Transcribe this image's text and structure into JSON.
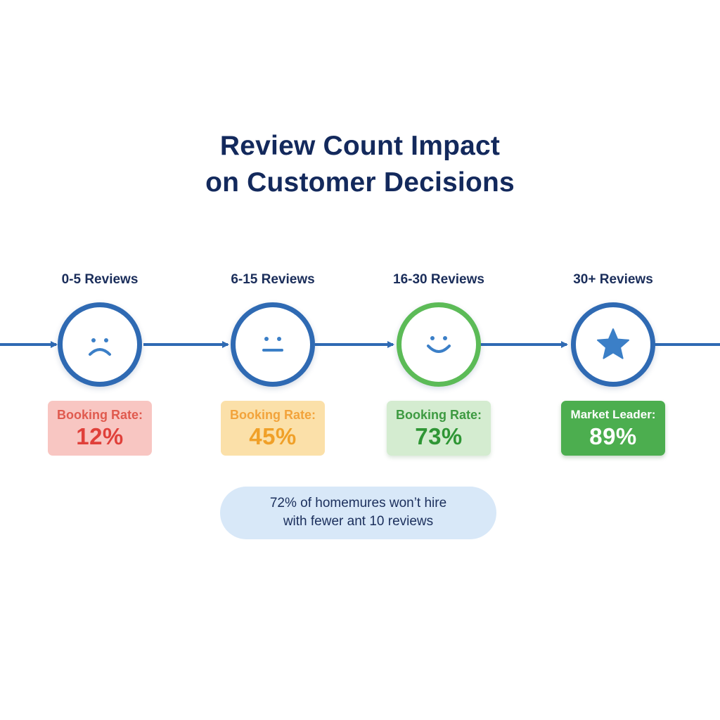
{
  "title": {
    "line1": "Review Count Impact",
    "line2": "on Customer Decisions"
  },
  "stages": [
    {
      "label": "0-5 Reviews",
      "icon": "sad-face-icon",
      "card_label": "Booking Rate:",
      "card_value": "12%",
      "card_color": "#f8c6c2"
    },
    {
      "label": "6-15 Reviews",
      "icon": "neutral-face-icon",
      "card_label": "Booking Rate:",
      "card_value": "45%",
      "card_color": "#fbe0a9"
    },
    {
      "label": "16-30 Reviews",
      "icon": "smiley-face-icon",
      "card_label": "Booking Rate:",
      "card_value": "73%",
      "card_color": "#d4ecd0"
    },
    {
      "label": "30+ Reviews",
      "icon": "star-icon",
      "card_label": "Market Leader:",
      "card_value": "89%",
      "card_color": "#4cae4f"
    }
  ],
  "note": {
    "line1": "72% of homemures won’t hire",
    "line2": "with fewer ant 10 reviews"
  },
  "colors": {
    "title": "#13295c",
    "timeline": "#2f6ab3",
    "circle_green": "#5cbb57",
    "note_background": "#d8e8f8"
  }
}
